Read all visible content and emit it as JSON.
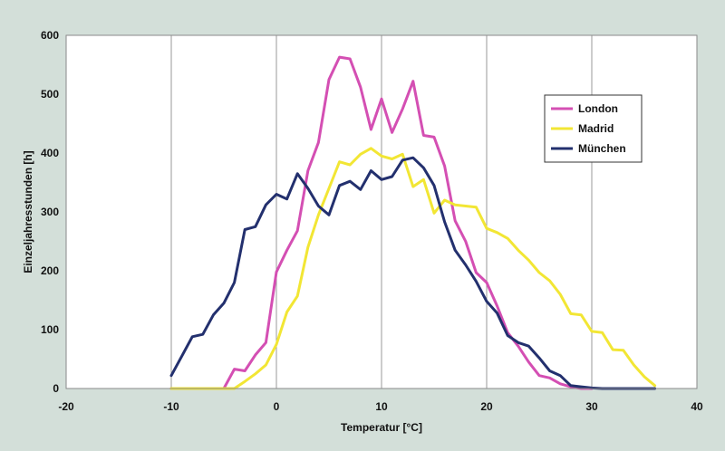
{
  "chart_data": {
    "type": "line",
    "xlabel": "Temperatur [°C]",
    "ylabel": "Einzeljahresstunden [h]",
    "xlim": [
      -20,
      40
    ],
    "ylim": [
      0,
      600
    ],
    "xticks": [
      -20,
      -10,
      0,
      10,
      20,
      30,
      40
    ],
    "yticks": [
      0,
      100,
      200,
      300,
      400,
      500,
      600
    ],
    "grid": "vertical",
    "legend_position": "right",
    "series": [
      {
        "name": "London",
        "color": "#d44fb3",
        "x": [
          -10,
          -9,
          -8,
          -7,
          -6,
          -5,
          -4,
          -3,
          -2,
          -1,
          0,
          1,
          2,
          3,
          4,
          5,
          6,
          7,
          8,
          9,
          10,
          11,
          12,
          13,
          14,
          15,
          16,
          17,
          18,
          19,
          20,
          21,
          22,
          23,
          24,
          25,
          26,
          27,
          28,
          29,
          30
        ],
        "y": [
          0,
          0,
          0,
          0,
          0,
          0,
          33,
          30,
          57,
          78,
          198,
          235,
          268,
          370,
          418,
          525,
          563,
          560,
          512,
          440,
          492,
          435,
          475,
          522,
          430,
          427,
          378,
          285,
          250,
          197,
          180,
          140,
          95,
          72,
          45,
          22,
          18,
          8,
          3,
          0,
          0
        ]
      },
      {
        "name": "Madrid",
        "color": "#f2e634",
        "x": [
          -10,
          -9,
          -8,
          -7,
          -6,
          -5,
          -4,
          -3,
          -2,
          -1,
          0,
          1,
          2,
          3,
          4,
          5,
          6,
          7,
          8,
          9,
          10,
          11,
          12,
          13,
          14,
          15,
          16,
          17,
          18,
          19,
          20,
          21,
          22,
          23,
          24,
          25,
          26,
          27,
          28,
          29,
          30,
          31,
          32,
          33,
          34,
          35,
          36
        ],
        "y": [
          0,
          0,
          0,
          0,
          0,
          0,
          0,
          12,
          25,
          40,
          75,
          130,
          157,
          240,
          295,
          340,
          385,
          380,
          398,
          408,
          395,
          390,
          398,
          343,
          355,
          298,
          320,
          312,
          310,
          308,
          272,
          265,
          255,
          235,
          218,
          197,
          183,
          160,
          127,
          125,
          97,
          95,
          66,
          65,
          40,
          20,
          5
        ]
      },
      {
        "name": "München",
        "color": "#23306e",
        "x": [
          -10,
          -9,
          -8,
          -7,
          -6,
          -5,
          -4,
          -3,
          -2,
          -1,
          0,
          1,
          2,
          3,
          4,
          5,
          6,
          7,
          8,
          9,
          10,
          11,
          12,
          13,
          14,
          15,
          16,
          17,
          18,
          19,
          20,
          21,
          22,
          23,
          24,
          25,
          26,
          27,
          28,
          29,
          30,
          31,
          32,
          33,
          34,
          35,
          36
        ],
        "y": [
          22,
          55,
          88,
          92,
          125,
          145,
          180,
          270,
          275,
          312,
          330,
          322,
          365,
          340,
          310,
          295,
          345,
          352,
          338,
          370,
          355,
          360,
          388,
          392,
          375,
          345,
          283,
          235,
          210,
          182,
          148,
          128,
          90,
          78,
          72,
          52,
          30,
          22,
          5,
          3,
          1,
          0,
          0,
          0,
          0,
          0,
          0
        ]
      }
    ]
  }
}
